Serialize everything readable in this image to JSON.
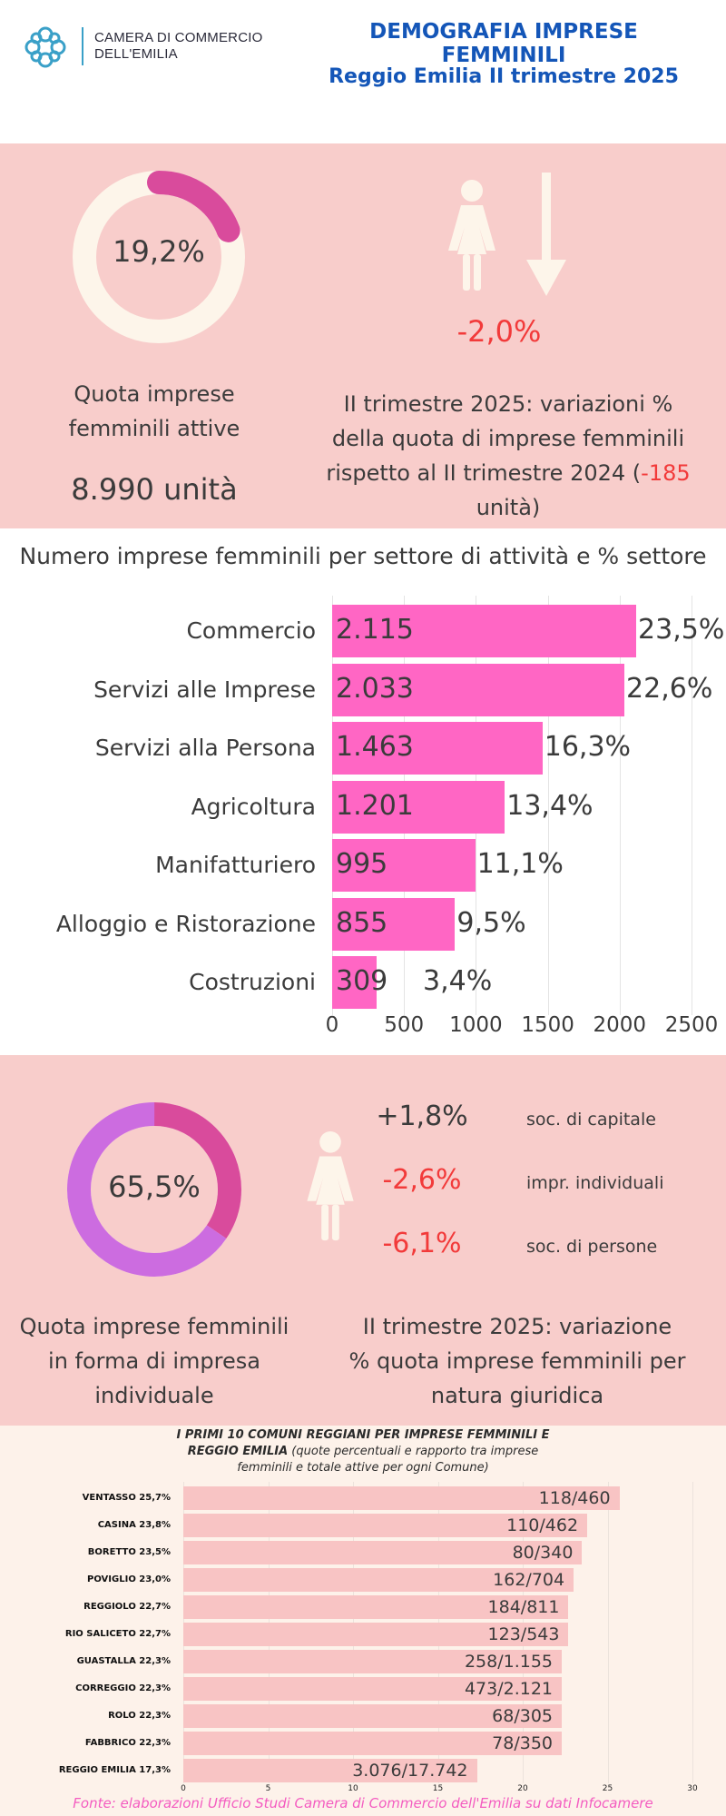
{
  "header": {
    "org_line1": "CAMERA DI COMMERCIO",
    "org_line2": "DELL'EMILIA",
    "title_line1": "DEMOGRAFIA IMPRESE",
    "title_line2": "FEMMINILI",
    "title_line3": "Reggio Emilia II trimestre 2025",
    "logo_icon": "network-knot-icon"
  },
  "quota": {
    "percent_label": "19,2%",
    "percent_value": 19.2,
    "label_line1": "Quota imprese",
    "label_line2": "femminili attive",
    "units": "8.990 unità"
  },
  "variation": {
    "value": "-2,0%",
    "desc_line1": "II trimestre 2025: variazioni %",
    "desc_line2": "della quota di imprese femminili",
    "desc_line3_pre": "rispetto al II trimestre 2024 (",
    "desc_line3_red": "-185",
    "desc_line4": "unità)",
    "woman_icon": "woman-icon",
    "arrow_icon": "arrow-down-icon"
  },
  "sector": {
    "title": "Numero imprese femminili per settore di attività e % settore"
  },
  "individual": {
    "percent_label": "65,5%",
    "percent_value": 65.5,
    "label_line1": "Quota imprese femminili",
    "label_line2": "in forma di impresa",
    "label_line3": "individuale",
    "desc_line1": "II trimestre 2025: variazione",
    "desc_line2": "% quota imprese femminili per",
    "desc_line3": "natura giuridica",
    "rows": [
      {
        "value": "+1,8%",
        "label": "soc. di capitale",
        "color": "#3b3b3b"
      },
      {
        "value": "-2,6%",
        "label": "impr. individuali",
        "color": "#f23a3a"
      },
      {
        "value": "-6,1%",
        "label": "soc. di persone",
        "color": "#f23a3a"
      }
    ]
  },
  "comuni": {
    "title_bold1": "I PRIMI 10 COMUNI REGGIANI PER IMPRESE FEMMINILI E",
    "title_bold2": "REGGIO EMILIA",
    "title_rest": " (quote percentuali e rapporto tra imprese",
    "title_line3": "femminili e totale attive per ogni Comune)"
  },
  "source": "Fonte: elaborazioni Ufficio Studi Camera di Commercio  dell'Emilia su dati Infocamere",
  "colors": {
    "pink_panel": "#f8cdcb",
    "bar_magenta": "#ff66c4",
    "bar_light": "#f8c4c4",
    "title_blue": "#1456b8",
    "red": "#f23a3a",
    "donut_track": "#fdf5ea",
    "donut_fill1": "#d94b9c",
    "donut_fill2": "#cc6ce0"
  },
  "chart_data": [
    {
      "type": "bar",
      "orientation": "horizontal",
      "title": "Numero imprese femminili per settore di attività e % settore",
      "categories": [
        "Commercio",
        "Servizi alle Imprese",
        "Servizi alla Persona",
        "Agricoltura",
        "Manifatturiero",
        "Alloggio e Ristorazione",
        "Costruzioni"
      ],
      "values": [
        2115,
        2033,
        1463,
        1201,
        995,
        855,
        309
      ],
      "value_labels": [
        "2.115",
        "2.033",
        "1.463",
        "1.201",
        "995",
        "855",
        "309"
      ],
      "percent_labels": [
        "23,5%",
        "22,6%",
        "16,3%",
        "13,4%",
        "11,1%",
        "9,5%",
        "3,4%"
      ],
      "xlim": [
        0,
        2500
      ],
      "xticks": [
        "0",
        "500",
        "1000",
        "1500",
        "2000",
        "2500"
      ],
      "grid": true
    },
    {
      "type": "bar",
      "orientation": "horizontal",
      "title": "I PRIMI 10 COMUNI REGGIANI PER IMPRESE FEMMINILI E REGGIO EMILIA",
      "categories": [
        "VENTASSO 25,7%",
        "CASINA 23,8%",
        "BORETTO 23,5%",
        "POVIGLIO 23,0%",
        "REGGIOLO 22,7%",
        "RIO SALICETO 22,7%",
        "GUASTALLA 22,3%",
        "CORREGGIO 22,3%",
        "ROLO 22,3%",
        "FABBRICO 22,3%",
        "REGGIO EMILIA 17,3%"
      ],
      "values": [
        25.7,
        23.8,
        23.5,
        23.0,
        22.7,
        22.7,
        22.3,
        22.3,
        22.3,
        22.3,
        17.3
      ],
      "ratio_labels": [
        "118/460",
        "110/462",
        "80/340",
        "162/704",
        "184/811",
        "123/543",
        "258/1.155",
        "473/2.121",
        "68/305",
        "78/350",
        "3.076/17.742"
      ],
      "xlim": [
        0,
        30
      ],
      "xticks": [
        "0",
        "5",
        "10",
        "15",
        "20",
        "25",
        "30"
      ],
      "grid": true
    }
  ]
}
